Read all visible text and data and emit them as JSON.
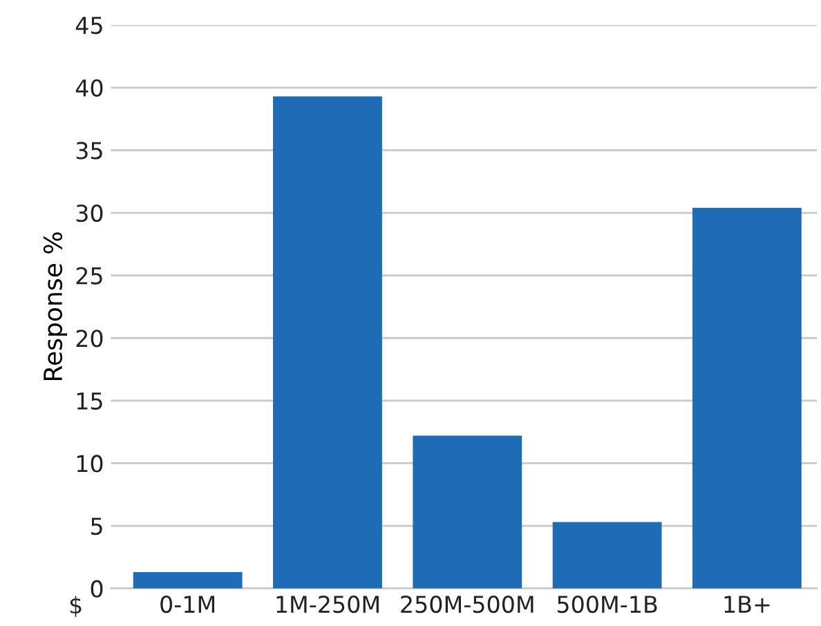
{
  "chart_data": {
    "type": "bar",
    "ylabel": "Response %",
    "categories": [
      "0-1M",
      "1M-250M",
      "250M-500M",
      "500M-1B",
      "1B+"
    ],
    "values": [
      1.3,
      39.3,
      12.2,
      5.3,
      30.4
    ],
    "color": "#1f6bb5",
    "ylim": [
      0,
      45
    ],
    "yticks": [
      0,
      5,
      10,
      15,
      20,
      25,
      30,
      35,
      40,
      45
    ],
    "grid": "y",
    "annotations": [
      "$"
    ]
  }
}
